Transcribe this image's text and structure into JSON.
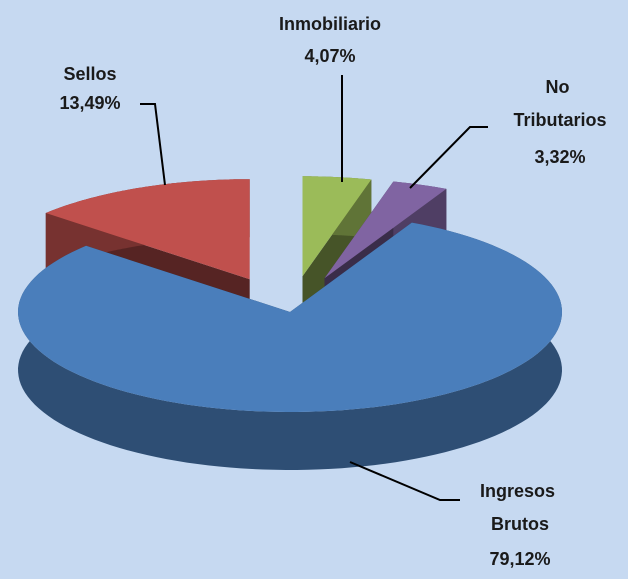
{
  "chart_data": {
    "type": "pie3d",
    "categories": [
      "Sellos",
      "Inmobiliario",
      "No Tributarios",
      "Ingresos Brutos"
    ],
    "values": [
      13.49,
      4.07,
      3.32,
      79.12
    ],
    "value_labels": [
      "13,49%",
      "4,07%",
      "3,32%",
      "79,12%"
    ],
    "colors": [
      "#c0504d",
      "#9bbb59",
      "#8064a2",
      "#4a7ebb"
    ],
    "exploded": [
      true,
      true,
      true,
      false
    ]
  }
}
